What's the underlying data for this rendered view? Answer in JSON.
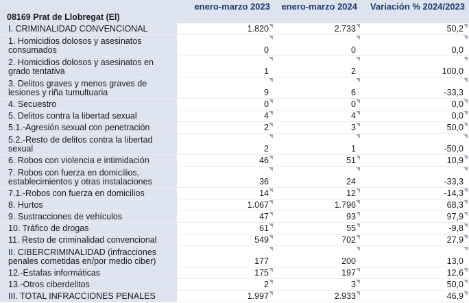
{
  "header": {
    "region": "08169 Prat de Llobregat (El)",
    "columns": [
      "enero-marzo 2023",
      "enero-marzo 2024",
      "Variación % 2024/2023"
    ]
  },
  "rows": [
    {
      "label": "I. CRIMINALIDAD CONVENCIONAL",
      "v2023": "1.820",
      "v2024": "2.733",
      "var": "50,2"
    },
    {
      "label": "1. Homicidios dolosos y asesinatos consumados",
      "v2023": "0",
      "v2024": "0",
      "var": "0,0"
    },
    {
      "label": "2. Homicidios dolosos y asesinatos en grado tentativa",
      "v2023": "1",
      "v2024": "2",
      "var": "100,0"
    },
    {
      "label": "3. Delitos graves y menos graves de lesiones y riña tumultuaria",
      "v2023": "9",
      "v2024": "6",
      "var": "-33,3"
    },
    {
      "label": "4. Secuestro",
      "v2023": "0",
      "v2024": "0",
      "var": "0,0"
    },
    {
      "label": "5. Delitos contra la libertad sexual",
      "v2023": "4",
      "v2024": "4",
      "var": "0,0"
    },
    {
      "label": "5.1.-Agresión sexual con penetración",
      "v2023": "2",
      "v2024": "3",
      "var": "50,0"
    },
    {
      "label": "5.2.-Resto de delitos contra la libertad sexual",
      "v2023": "2",
      "v2024": "1",
      "var": "-50,0"
    },
    {
      "label": "6. Robos con violencia e intimidación",
      "v2023": "46",
      "v2024": "51",
      "var": "10,9"
    },
    {
      "label": "7. Robos con fuerza en domicilios, establecimientos y otras instalaciones",
      "v2023": "36",
      "v2024": "24",
      "var": "-33,3"
    },
    {
      "label": "7.1.-Robos con fuerza en domicilios",
      "v2023": "14",
      "v2024": "12",
      "var": "-14,3"
    },
    {
      "label": "8. Hurtos",
      "v2023": "1.067",
      "v2024": "1.796",
      "var": "68,3"
    },
    {
      "label": "9. Sustracciones de vehículos",
      "v2023": "47",
      "v2024": "93",
      "var": "97,9"
    },
    {
      "label": "10. Tráfico de drogas",
      "v2023": "61",
      "v2024": "55",
      "var": "-9,8"
    },
    {
      "label": "11. Resto de criminalidad convencional",
      "v2023": "549",
      "v2024": "702",
      "var": "27,9"
    },
    {
      "label": "II. CIBERCRIMINALIDAD (infracciones penales cometidas en/por medio ciber)",
      "v2023": "177",
      "v2024": "200",
      "var": "13,0"
    },
    {
      "label": "12.-Estafas informáticas",
      "v2023": "175",
      "v2024": "197",
      "var": "12,6"
    },
    {
      "label": "13.-Otros ciberdelitos",
      "v2023": "2",
      "v2024": "3",
      "var": "50,0"
    },
    {
      "label": "III. TOTAL INFRACCIONES PENALES",
      "v2023": "1.997",
      "v2024": "2.933",
      "var": "46,9"
    }
  ]
}
